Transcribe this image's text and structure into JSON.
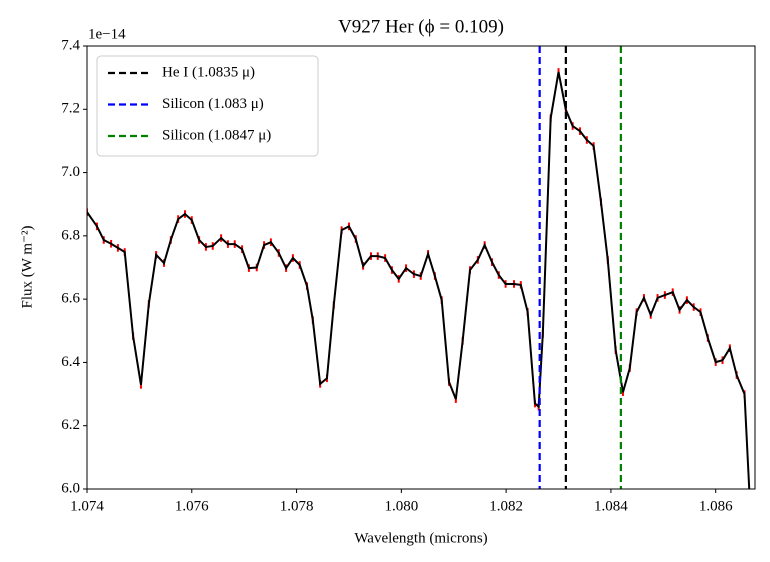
{
  "chart_data": {
    "type": "line",
    "title": "V927 Her (ϕ = 0.109)",
    "x_label": "Wavelength (microns)",
    "y_label": "Flux (W m⁻²)",
    "y_offset_label": "1e−14",
    "xlim": [
      1.074,
      1.08675
    ],
    "ylim": [
      6.0,
      7.4
    ],
    "xticks": [
      1.074,
      1.076,
      1.078,
      {
        "value": 1.08,
        "label": "1.080"
      },
      1.082,
      1.084,
      1.086
    ],
    "yticks": [
      {
        "value": 6,
        "label": "6.0"
      },
      6.2,
      6.4,
      6.6,
      6.8,
      {
        "value": 7,
        "label": "7.0"
      },
      7.2,
      7.4
    ],
    "color": "#000000",
    "yerr": 0.012,
    "yerr_color": "#ff0000",
    "x": [
      1.074,
      1.07419,
      1.07432,
      1.07446,
      1.07459,
      1.07472,
      1.07488,
      1.07503,
      1.07518,
      1.07532,
      1.07547,
      1.0756,
      1.07574,
      1.07587,
      1.076,
      1.07614,
      1.07627,
      1.0764,
      1.07656,
      1.07669,
      1.07682,
      1.07696,
      1.07709,
      1.07724,
      1.07738,
      1.07751,
      1.07766,
      1.0778,
      1.07793,
      1.07806,
      1.0782,
      1.07831,
      1.07845,
      1.07858,
      1.07871,
      1.07886,
      1.079,
      1.07913,
      1.07927,
      1.07942,
      1.07955,
      1.07969,
      1.07982,
      1.07995,
      1.08009,
      1.08024,
      1.08037,
      1.08051,
      1.08064,
      1.08077,
      1.08091,
      1.08104,
      1.08117,
      1.08131,
      1.08146,
      1.08159,
      1.08173,
      1.08186,
      1.08199,
      1.08215,
      1.08228,
      1.08241,
      1.08255,
      1.08262,
      1.0827,
      1.08285,
      1.083,
      1.08314,
      1.08327,
      1.08341,
      1.08354,
      1.08367,
      1.08381,
      1.08394,
      1.08409,
      1.08423,
      1.08436,
      1.08449,
      1.08463,
      1.08476,
      1.08489,
      1.08503,
      1.08518,
      1.08531,
      1.08545,
      1.08558,
      1.08571,
      1.08585,
      1.086,
      1.08613,
      1.08627,
      1.0864,
      1.08655,
      1.08667
    ],
    "values": [
      6.875,
      6.83,
      6.787,
      6.775,
      6.762,
      6.749,
      6.483,
      6.329,
      6.585,
      6.74,
      6.714,
      6.787,
      6.853,
      6.869,
      6.85,
      6.787,
      6.765,
      6.768,
      6.793,
      6.774,
      6.774,
      6.758,
      6.698,
      6.7,
      6.771,
      6.78,
      6.746,
      6.698,
      6.73,
      6.708,
      6.641,
      6.534,
      6.332,
      6.35,
      6.581,
      6.818,
      6.83,
      6.79,
      6.705,
      6.736,
      6.736,
      6.73,
      6.692,
      6.664,
      6.698,
      6.679,
      6.673,
      6.743,
      6.673,
      6.597,
      6.338,
      6.284,
      6.468,
      6.692,
      6.724,
      6.771,
      6.717,
      6.676,
      6.648,
      6.648,
      6.645,
      6.56,
      6.27,
      6.26,
      6.49,
      7.172,
      7.318,
      7.198,
      7.147,
      7.131,
      7.103,
      7.084,
      6.907,
      6.724,
      6.439,
      6.306,
      6.382,
      6.559,
      6.604,
      6.55,
      6.604,
      6.613,
      6.622,
      6.566,
      6.597,
      6.575,
      6.559,
      6.477,
      6.401,
      6.407,
      6.445,
      6.36,
      6.3,
      5.9
    ],
    "vlines": [
      {
        "name": "He I (1.0835 μ)",
        "x": 1.08314,
        "color": "#000000"
      },
      {
        "name": "Silicon (1.083 μ)",
        "x": 1.08264,
        "color": "#0000ff"
      },
      {
        "name": "Silicon (1.0847 μ)",
        "x": 1.08419,
        "color": "#008000"
      }
    ],
    "legend": "upper left"
  }
}
